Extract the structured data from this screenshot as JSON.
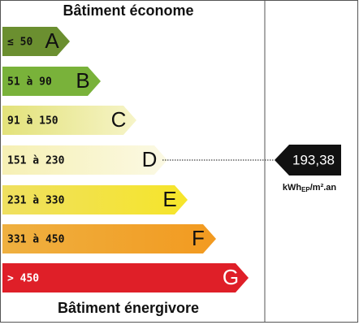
{
  "header": "Bâtiment économe",
  "footer": "Bâtiment énergivore",
  "classes": [
    {
      "range": "≤ 50",
      "letter": "A"
    },
    {
      "range": "51 à 90",
      "letter": "B"
    },
    {
      "range": "91 à 150",
      "letter": "C"
    },
    {
      "range": "151 à 230",
      "letter": "D"
    },
    {
      "range": "231 à 330",
      "letter": "E"
    },
    {
      "range": "331 à 450",
      "letter": "F"
    },
    {
      "range": "> 450",
      "letter": "G"
    }
  ],
  "value": "193,38",
  "unit": {
    "main": "kWh",
    "sub": "EP",
    "rest": "/m².an"
  }
}
